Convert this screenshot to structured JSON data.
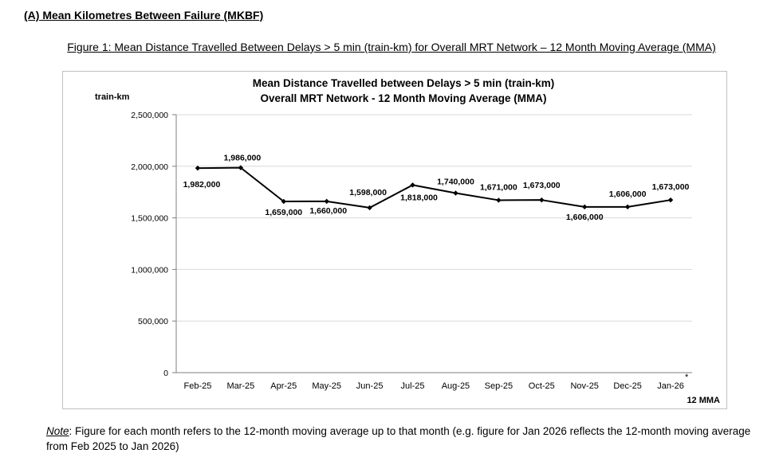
{
  "section_heading": "(A) Mean Kilometres Between Failure (MKBF)",
  "figure_caption": "Figure 1: Mean Distance Travelled Between Delays > 5 min (train-km) for Overall MRT Network – 12 Month Moving Average (MMA)",
  "note": {
    "label": "Note",
    "text": ": Figure for each month refers to the 12-month moving average up to that month (e.g. figure for Jan 2026 reflects the 12-month moving average from Feb 2025 to Jan 2026)"
  },
  "chart_data": {
    "type": "line",
    "title_line1": "Mean Distance Travelled between Delays > 5 min (train-km)",
    "title_line2": "Overall MRT Network - 12 Month Moving Average (MMA)",
    "ylabel": "train-km",
    "xlabel": "12 MMA",
    "ylim": [
      0,
      2500000
    ],
    "yticks": [
      0,
      500000,
      1000000,
      1500000,
      2000000,
      2500000
    ],
    "ytick_labels": [
      "0",
      "500,000",
      "1,000,000",
      "1,500,000",
      "2,000,000",
      "2,500,000"
    ],
    "categories": [
      "Feb-25",
      "Mar-25",
      "Apr-25",
      "May-25",
      "Jun-25",
      "Jul-25",
      "Aug-25",
      "Sep-25",
      "Oct-25",
      "Nov-25",
      "Dec-25",
      "Jan-26"
    ],
    "values": [
      1982000,
      1986000,
      1659000,
      1660000,
      1598000,
      1818000,
      1740000,
      1671000,
      1673000,
      1606000,
      1606000,
      1673000
    ],
    "data_labels": [
      "1,982,000",
      "1,986,000",
      "1,659,000",
      "1,660,000",
      "1,598,000",
      "1,818,000",
      "1,740,000",
      "1,671,000",
      "1,673,000",
      "1,606,000",
      "1,606,000",
      "1,673,000"
    ],
    "last_category_marker": "*",
    "grid": "horizontal",
    "line_color": "#000000",
    "grid_color": "#d9d9d9"
  }
}
